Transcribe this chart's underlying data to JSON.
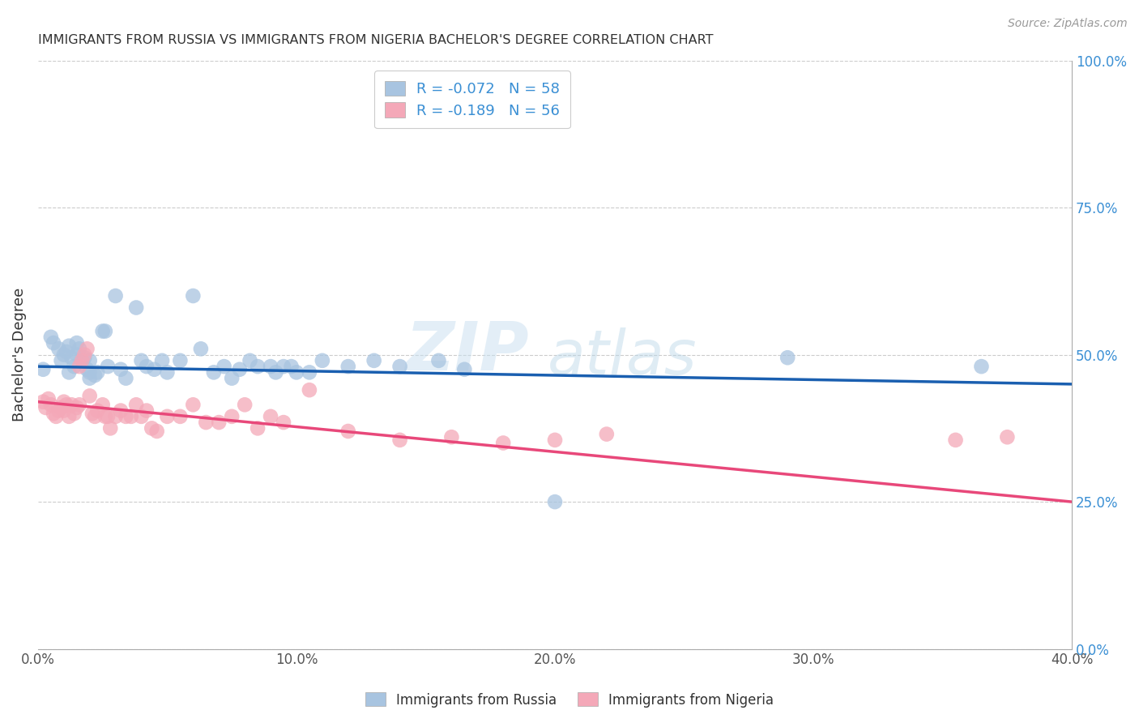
{
  "title": "IMMIGRANTS FROM RUSSIA VS IMMIGRANTS FROM NIGERIA BACHELOR'S DEGREE CORRELATION CHART",
  "source": "Source: ZipAtlas.com",
  "xlabel_ticks": [
    "0.0%",
    "10.0%",
    "20.0%",
    "30.0%",
    "40.0%"
  ],
  "xlabel_tick_vals": [
    0.0,
    0.1,
    0.2,
    0.3,
    0.4
  ],
  "ylabel_ticks": [
    "0.0%",
    "25.0%",
    "50.0%",
    "75.0%",
    "100.0%"
  ],
  "ylabel_tick_vals": [
    0.0,
    0.25,
    0.5,
    0.75,
    1.0
  ],
  "ylabel": "Bachelor's Degree",
  "xlim": [
    0.0,
    0.4
  ],
  "ylim": [
    0.0,
    1.0
  ],
  "russia_color": "#a8c4e0",
  "nigeria_color": "#f4a8b8",
  "russia_line_color": "#1a5fb0",
  "nigeria_line_color": "#e8487a",
  "watermark_zip": "ZIP",
  "watermark_atlas": "atlas",
  "legend_russia_label": "R = -0.072   N = 58",
  "legend_nigeria_label": "R = -0.189   N = 56",
  "russia_x": [
    0.002,
    0.005,
    0.006,
    0.008,
    0.009,
    0.01,
    0.011,
    0.012,
    0.012,
    0.013,
    0.014,
    0.015,
    0.015,
    0.016,
    0.017,
    0.018,
    0.019,
    0.02,
    0.02,
    0.02,
    0.022,
    0.023,
    0.025,
    0.026,
    0.027,
    0.03,
    0.032,
    0.034,
    0.038,
    0.04,
    0.042,
    0.045,
    0.048,
    0.05,
    0.055,
    0.06,
    0.063,
    0.068,
    0.072,
    0.075,
    0.078,
    0.082,
    0.085,
    0.09,
    0.092,
    0.095,
    0.098,
    0.1,
    0.105,
    0.11,
    0.12,
    0.13,
    0.14,
    0.155,
    0.165,
    0.2,
    0.29,
    0.365
  ],
  "russia_y": [
    0.475,
    0.53,
    0.52,
    0.51,
    0.49,
    0.5,
    0.505,
    0.515,
    0.47,
    0.495,
    0.48,
    0.5,
    0.52,
    0.51,
    0.49,
    0.495,
    0.475,
    0.46,
    0.47,
    0.49,
    0.465,
    0.47,
    0.54,
    0.54,
    0.48,
    0.6,
    0.475,
    0.46,
    0.58,
    0.49,
    0.48,
    0.475,
    0.49,
    0.47,
    0.49,
    0.6,
    0.51,
    0.47,
    0.48,
    0.46,
    0.475,
    0.49,
    0.48,
    0.48,
    0.47,
    0.48,
    0.48,
    0.47,
    0.47,
    0.49,
    0.48,
    0.49,
    0.48,
    0.49,
    0.475,
    0.25,
    0.495,
    0.48
  ],
  "nigeria_x": [
    0.002,
    0.003,
    0.004,
    0.005,
    0.006,
    0.007,
    0.008,
    0.009,
    0.01,
    0.01,
    0.011,
    0.012,
    0.013,
    0.014,
    0.015,
    0.016,
    0.016,
    0.017,
    0.018,
    0.019,
    0.02,
    0.021,
    0.022,
    0.023,
    0.025,
    0.026,
    0.027,
    0.028,
    0.03,
    0.032,
    0.034,
    0.036,
    0.038,
    0.04,
    0.042,
    0.044,
    0.046,
    0.05,
    0.055,
    0.06,
    0.065,
    0.07,
    0.075,
    0.08,
    0.085,
    0.09,
    0.095,
    0.105,
    0.12,
    0.14,
    0.16,
    0.18,
    0.2,
    0.22,
    0.355,
    0.375
  ],
  "nigeria_y": [
    0.42,
    0.41,
    0.425,
    0.415,
    0.4,
    0.395,
    0.405,
    0.41,
    0.42,
    0.405,
    0.415,
    0.395,
    0.415,
    0.4,
    0.41,
    0.415,
    0.48,
    0.49,
    0.5,
    0.51,
    0.43,
    0.4,
    0.395,
    0.405,
    0.415,
    0.395,
    0.395,
    0.375,
    0.395,
    0.405,
    0.395,
    0.395,
    0.415,
    0.395,
    0.405,
    0.375,
    0.37,
    0.395,
    0.395,
    0.415,
    0.385,
    0.385,
    0.395,
    0.415,
    0.375,
    0.395,
    0.385,
    0.44,
    0.37,
    0.355,
    0.36,
    0.35,
    0.355,
    0.365,
    0.355,
    0.36
  ]
}
